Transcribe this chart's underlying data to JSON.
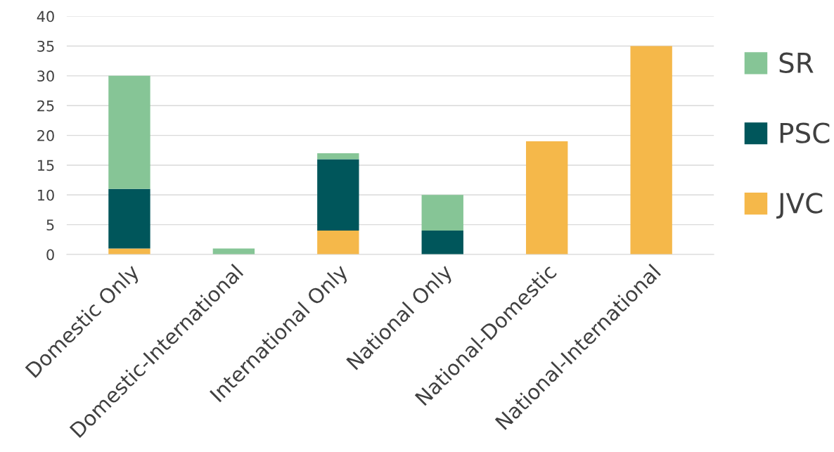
{
  "chart_data": {
    "type": "bar",
    "stacked": true,
    "categories": [
      "Domestic Only",
      "Domestic-International",
      "International Only",
      "National Only",
      "National-Domestic",
      "National-International"
    ],
    "series": [
      {
        "name": "JVC",
        "color": "#f5b84a",
        "values": [
          1,
          0,
          4,
          0,
          19,
          35
        ]
      },
      {
        "name": "PSC",
        "color": "#00565b",
        "values": [
          10,
          0,
          12,
          4,
          0,
          0
        ]
      },
      {
        "name": "SR",
        "color": "#86c596",
        "values": [
          19,
          1,
          1,
          6,
          0,
          0
        ]
      }
    ],
    "ylim": [
      0,
      40
    ],
    "yticks": [
      0,
      5,
      10,
      15,
      20,
      25,
      30,
      35,
      40
    ],
    "grid": "y",
    "legend": "right"
  }
}
